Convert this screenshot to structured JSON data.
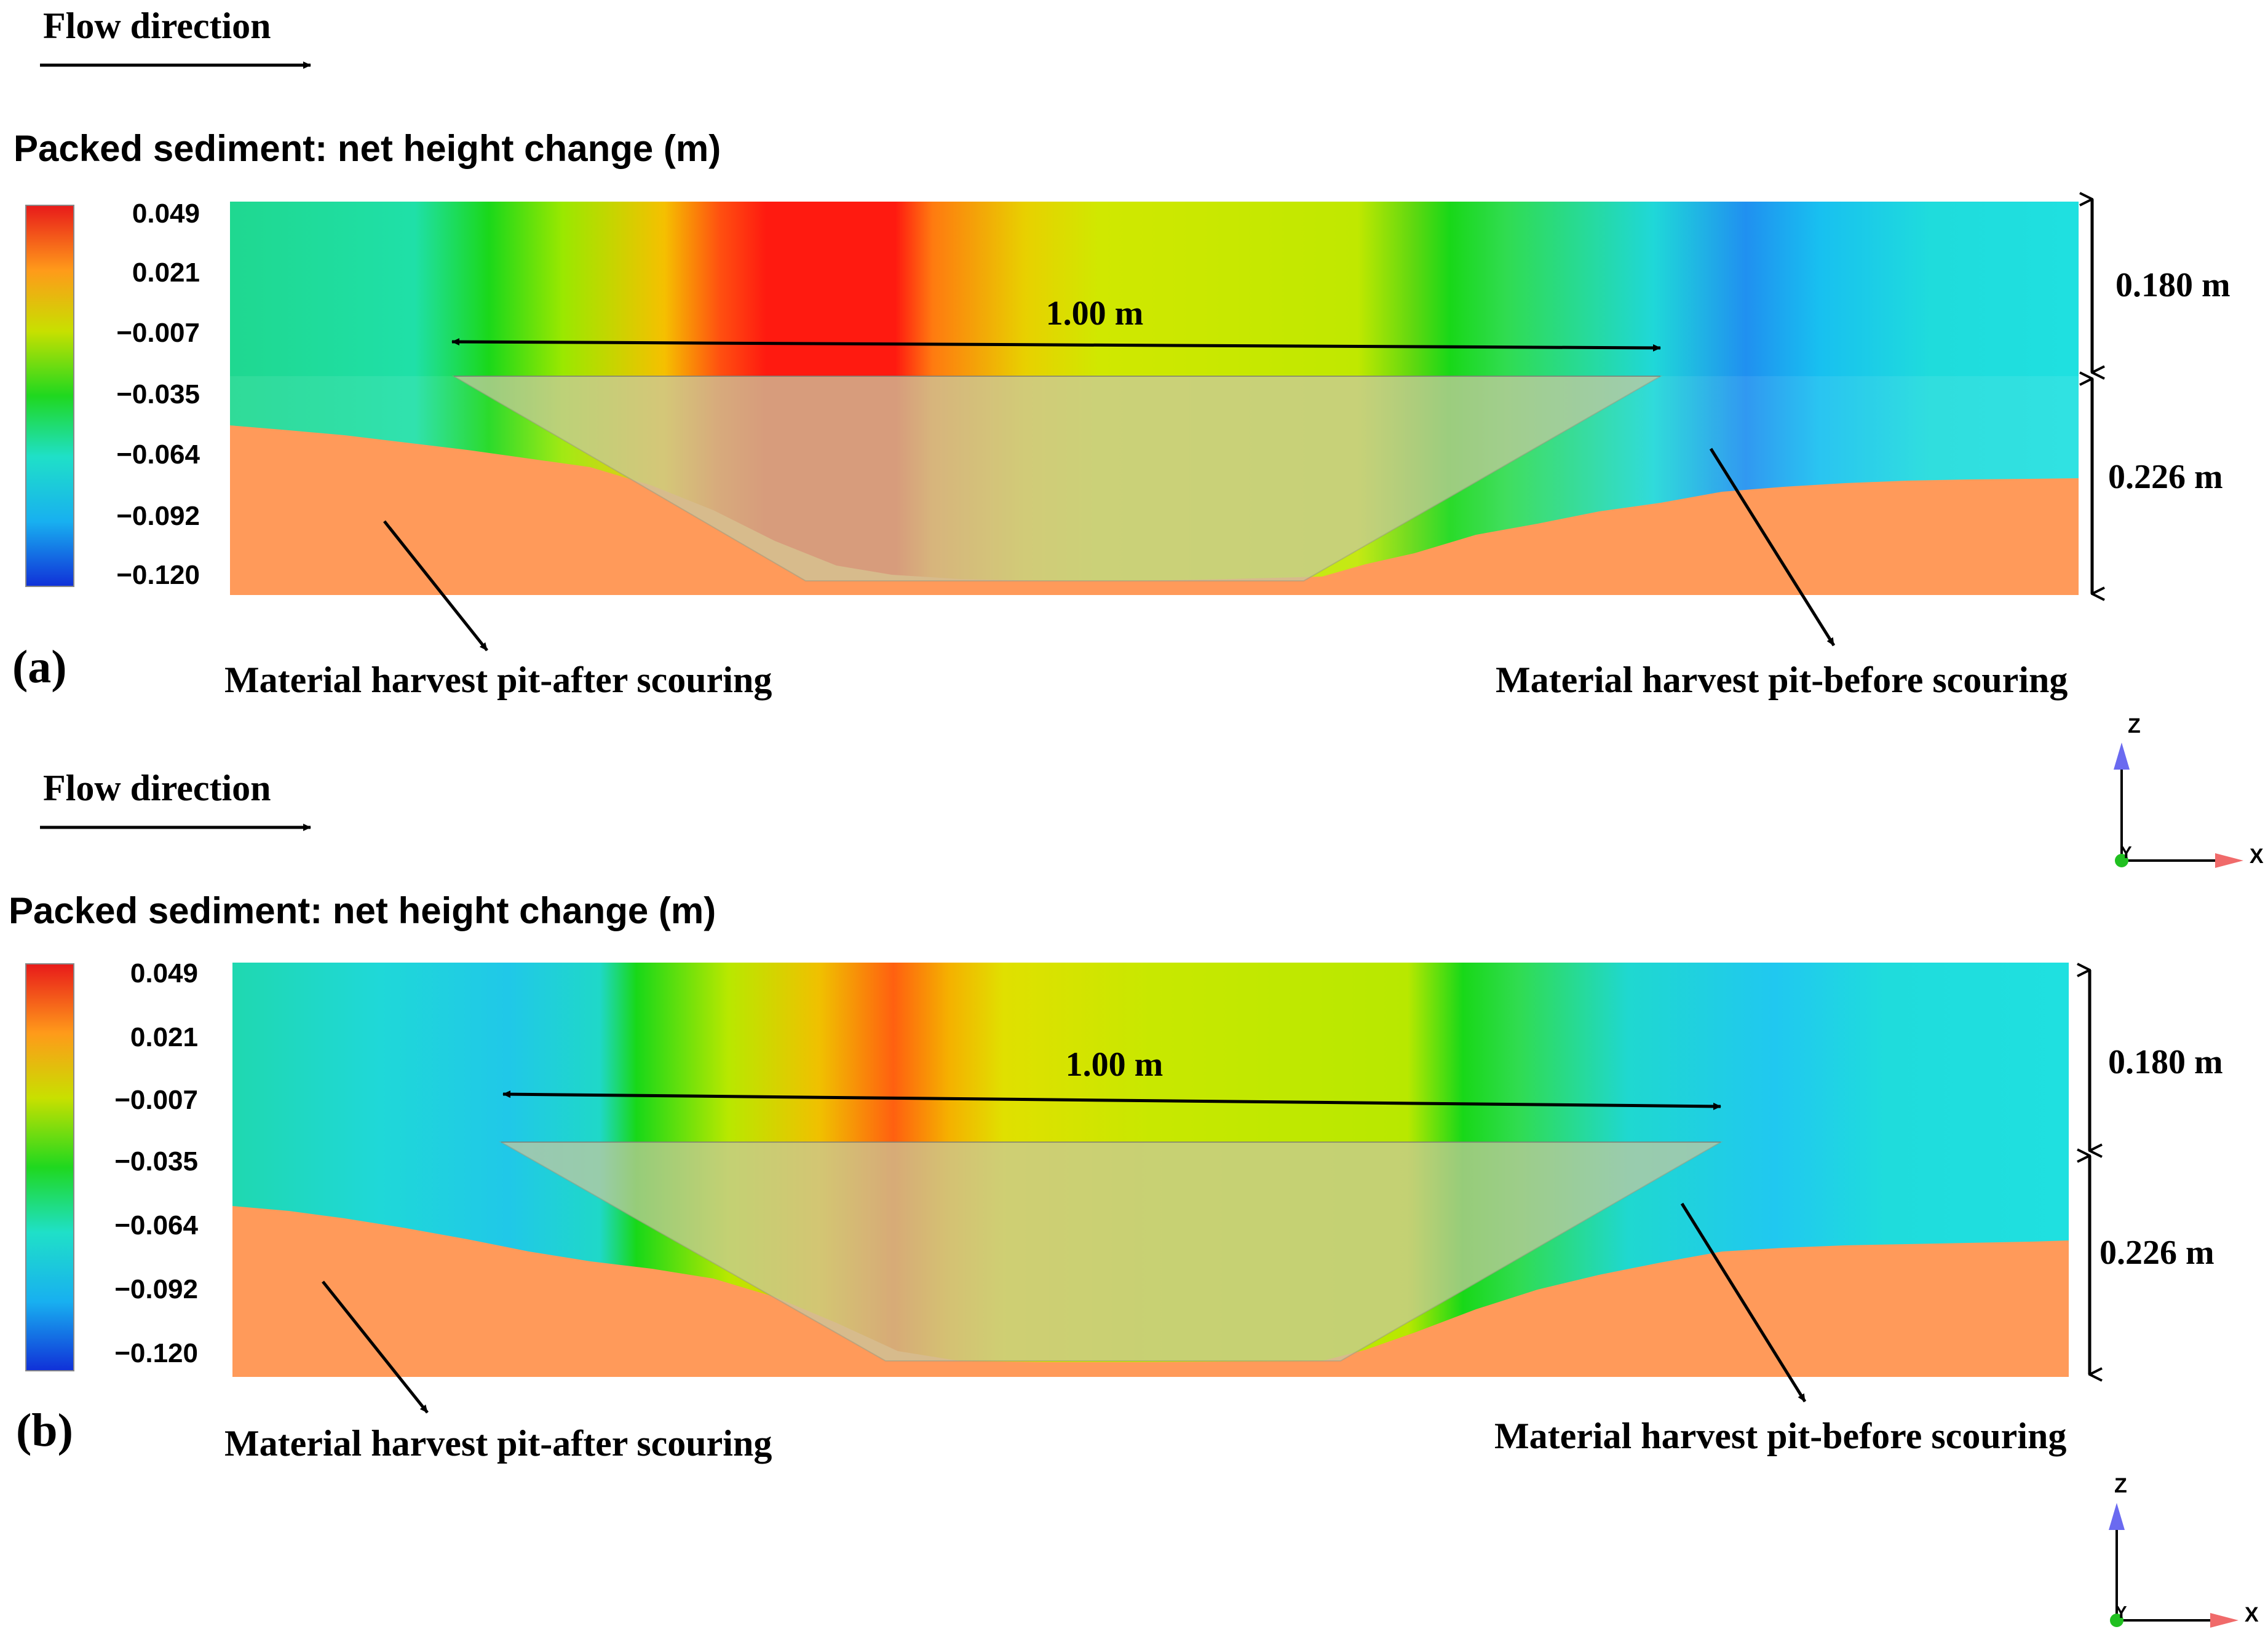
{
  "panels": [
    {
      "id": "a",
      "panel_label": "(a)",
      "flow_label": "Flow direction",
      "colorbar_title": "Packed sediment: net height change (m)",
      "colorbar_ticks": [
        "0.049",
        "0.021",
        "−0.007",
        "−0.035",
        "−0.064",
        "−0.092",
        "−0.120"
      ],
      "width_label": "1.00 m",
      "upper_height_label": "0.180 m",
      "lower_height_label": "0.226 m",
      "label_after": "Material harvest pit-after scouring",
      "label_before": "Material harvest pit-before scouring",
      "axis_z": "Z",
      "axis_x": "X",
      "axis_y": "Y"
    },
    {
      "id": "b",
      "panel_label": "(b)",
      "flow_label": "Flow direction",
      "colorbar_title": "Packed sediment: net height change (m)",
      "colorbar_ticks": [
        "0.049",
        "0.021",
        "−0.007",
        "−0.035",
        "−0.064",
        "−0.092",
        "−0.120"
      ],
      "width_label": "1.00 m",
      "upper_height_label": "0.180 m",
      "lower_height_label": "0.226 m",
      "label_after": "Material harvest pit-after scouring",
      "label_before": "Material harvest pit-before scouring",
      "axis_z": "Z",
      "axis_x": "X",
      "axis_y": "Y"
    }
  ],
  "colors": {
    "sediment": "#ff9a5a",
    "pit_overlay": "#c8c8a0",
    "colormap": [
      "#ff1a1a",
      "#ff9a1a",
      "#d8e800",
      "#1fd81f",
      "#1fe0c8",
      "#18b6f0",
      "#1030e0"
    ]
  }
}
